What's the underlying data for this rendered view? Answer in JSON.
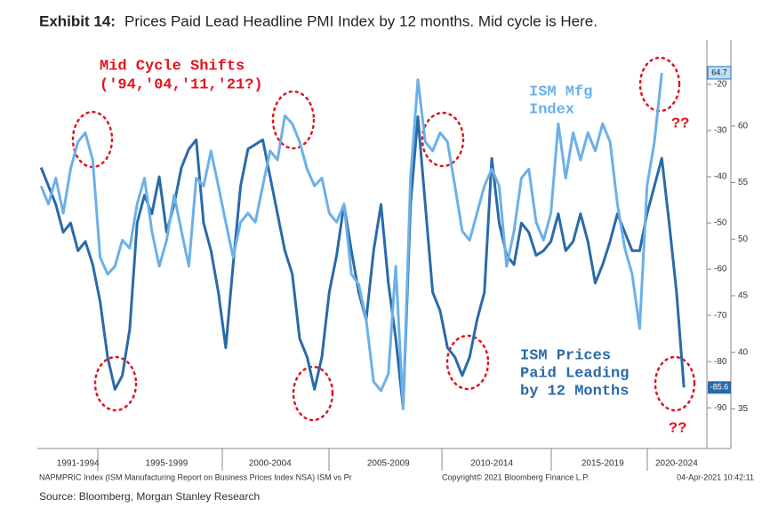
{
  "chart_data": {
    "type": "line",
    "title_label": "Exhibit 14:",
    "title": "Prices Paid Lead Headline PMI Index by 12 months. Mid cycle is Here.",
    "categories": [
      null,
      null,
      null,
      null,
      null,
      "1991-1994",
      null,
      null,
      null,
      null,
      null,
      null,
      null,
      null,
      null,
      null,
      null,
      "1995-1999",
      null,
      null,
      null,
      null,
      null,
      null,
      null,
      null,
      null,
      null,
      null,
      null,
      null,
      "2000-2004",
      null,
      null,
      null,
      null,
      null,
      null,
      null,
      null,
      null,
      null,
      null,
      null,
      null,
      null,
      null,
      "2005-2009",
      null,
      null,
      null,
      null,
      null,
      null,
      null,
      null,
      null,
      null,
      null,
      null,
      null,
      "2010-2014",
      null,
      null,
      null,
      null,
      null,
      null,
      null,
      null,
      null,
      null,
      null,
      null,
      null,
      null,
      "2015-2019",
      null,
      null,
      null,
      null,
      null,
      null,
      null,
      null,
      null,
      "2020-2024",
      null,
      null,
      null
    ],
    "series": [
      {
        "label_lines": [
          "ISM Prices",
          "Paid Leading",
          "by 12 Months"
        ],
        "color": "#2a6aa8",
        "axis": "y",
        "last_label": "-85.6",
        "values": [
          -38,
          -42,
          -46,
          -52,
          -50,
          -56,
          -54,
          -59,
          -67,
          -79,
          -86,
          -83,
          -73,
          -50,
          -44,
          -48,
          -40,
          -52,
          -46,
          -38,
          -34,
          -32,
          -50,
          -56,
          -65,
          -77,
          -59,
          -42,
          -34,
          -33,
          -32,
          -40,
          -48,
          -56,
          -61,
          -75,
          -79,
          -86,
          -79,
          -65,
          -57,
          -46,
          -56,
          -65,
          -71,
          -56,
          -46,
          -63,
          -75,
          -90,
          -46,
          -27,
          -46,
          -65,
          -69,
          -77,
          -79,
          -83,
          -79,
          -71,
          -65,
          -36,
          -50,
          -57,
          -59,
          -50,
          -52,
          -57,
          -56,
          -54,
          -48,
          -56,
          -54,
          -48,
          -54,
          -63,
          -59,
          -54,
          -48,
          -52,
          -56,
          -56,
          -48,
          -42,
          -36,
          -50,
          -65,
          -85.6,
          null,
          null
        ]
      },
      {
        "label_lines": [
          "ISM Mfg",
          "Index"
        ],
        "color": "#6cb0e8",
        "axis": "y2",
        "last_label": "64.7",
        "values": [
          54.7,
          53.1,
          55.4,
          52.3,
          56.2,
          58.6,
          59.4,
          57.0,
          48.4,
          46.9,
          47.6,
          49.9,
          49.2,
          53.1,
          55.4,
          50.7,
          47.6,
          49.9,
          53.9,
          50.7,
          47.6,
          55.4,
          54.7,
          57.8,
          54.7,
          51.5,
          48.4,
          51.5,
          52.3,
          51.5,
          54.7,
          57.8,
          57.0,
          60.9,
          60.2,
          58.6,
          56.2,
          54.7,
          55.4,
          52.3,
          51.5,
          53.1,
          46.9,
          46.0,
          42.9,
          37.4,
          36.6,
          38.1,
          47.6,
          35.0,
          55.4,
          64.1,
          58.6,
          57.8,
          59.4,
          58.6,
          54.7,
          50.7,
          49.9,
          52.3,
          54.7,
          56.2,
          54.7,
          47.6,
          50.7,
          55.4,
          56.2,
          51.5,
          49.9,
          52.3,
          60.2,
          55.4,
          59.4,
          57.0,
          59.4,
          57.8,
          60.2,
          58.6,
          53.1,
          49.2,
          46.9,
          42.1,
          54.7,
          58.6,
          64.7,
          null,
          null,
          null,
          null,
          null
        ]
      }
    ],
    "ylim": [
      -98.8,
      -10.4
    ],
    "yticks": [
      -20,
      -30,
      -40,
      -50,
      -60,
      -70,
      -80,
      -90
    ],
    "y2lim": [
      31.5,
      67.6
    ],
    "y2ticks": [
      60,
      55,
      50,
      45,
      40,
      35
    ],
    "annotations": [
      "Mid Cycle Shifts",
      "('94,'04,'11,'21?)",
      "??",
      "??"
    ],
    "footer": [
      "NAPMPRIC Index (ISM Manufacturing Report on Business Prices Index NSA) ISM vs Pr",
      "Copyright© 2021 Bloomberg Finance L.P.",
      "04-Apr-2021 10:42:11"
    ],
    "source": "Source: Bloomberg, Morgan Stanley Research"
  }
}
